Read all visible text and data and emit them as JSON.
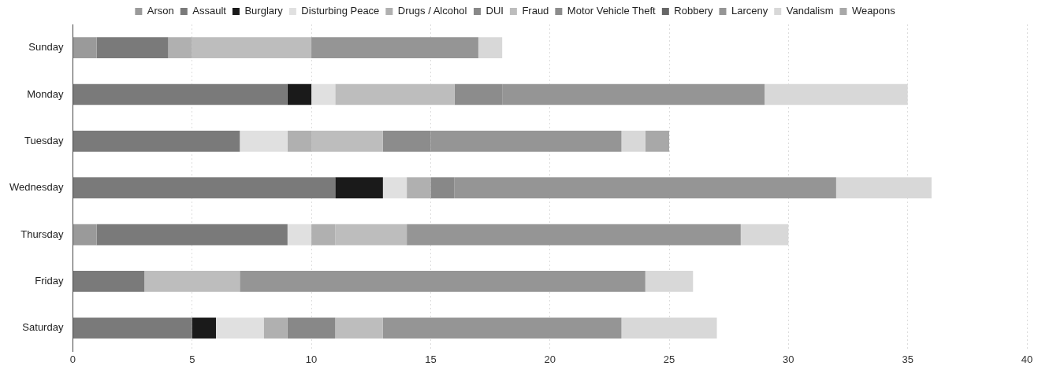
{
  "chart_data": {
    "type": "bar",
    "orientation": "horizontal",
    "stacked": true,
    "categories": [
      "Sunday",
      "Monday",
      "Tuesday",
      "Wednesday",
      "Thursday",
      "Friday",
      "Saturday"
    ],
    "series": [
      {
        "name": "Arson",
        "color": "#9a9a9a",
        "values": [
          1,
          0,
          0,
          0,
          1,
          0,
          0
        ]
      },
      {
        "name": "Assault",
        "color": "#7a7a7a",
        "values": [
          3,
          9,
          7,
          11,
          8,
          3,
          5
        ]
      },
      {
        "name": "Burglary",
        "color": "#1a1a1a",
        "values": [
          0,
          1,
          0,
          2,
          0,
          0,
          1
        ]
      },
      {
        "name": "Disturbing Peace",
        "color": "#e0e0e0",
        "values": [
          0,
          1,
          2,
          1,
          1,
          0,
          2
        ]
      },
      {
        "name": "Drugs / Alcohol",
        "color": "#b0b0b0",
        "values": [
          1,
          0,
          1,
          1,
          1,
          0,
          1
        ]
      },
      {
        "name": "DUI",
        "color": "#888888",
        "values": [
          0,
          0,
          0,
          1,
          0,
          0,
          2
        ]
      },
      {
        "name": "Fraud",
        "color": "#bdbdbd",
        "values": [
          5,
          5,
          3,
          0,
          3,
          4,
          2
        ]
      },
      {
        "name": "Motor Vehicle Theft",
        "color": "#8c8c8c",
        "values": [
          0,
          2,
          2,
          0,
          0,
          0,
          0
        ]
      },
      {
        "name": "Robbery",
        "color": "#666666",
        "values": [
          0,
          0,
          0,
          0,
          0,
          0,
          0
        ]
      },
      {
        "name": "Larceny",
        "color": "#959595",
        "values": [
          7,
          11,
          8,
          16,
          14,
          17,
          10
        ]
      },
      {
        "name": "Vandalism",
        "color": "#d8d8d8",
        "values": [
          1,
          6,
          1,
          4,
          2,
          2,
          4
        ]
      },
      {
        "name": "Weapons",
        "color": "#a8a8a8",
        "values": [
          0,
          0,
          1,
          0,
          0,
          0,
          0
        ]
      }
    ],
    "xlim": [
      0,
      40
    ],
    "xticks": [
      0,
      5,
      10,
      15,
      20,
      25,
      30,
      35,
      40
    ],
    "grid": "x",
    "legend": "top"
  }
}
